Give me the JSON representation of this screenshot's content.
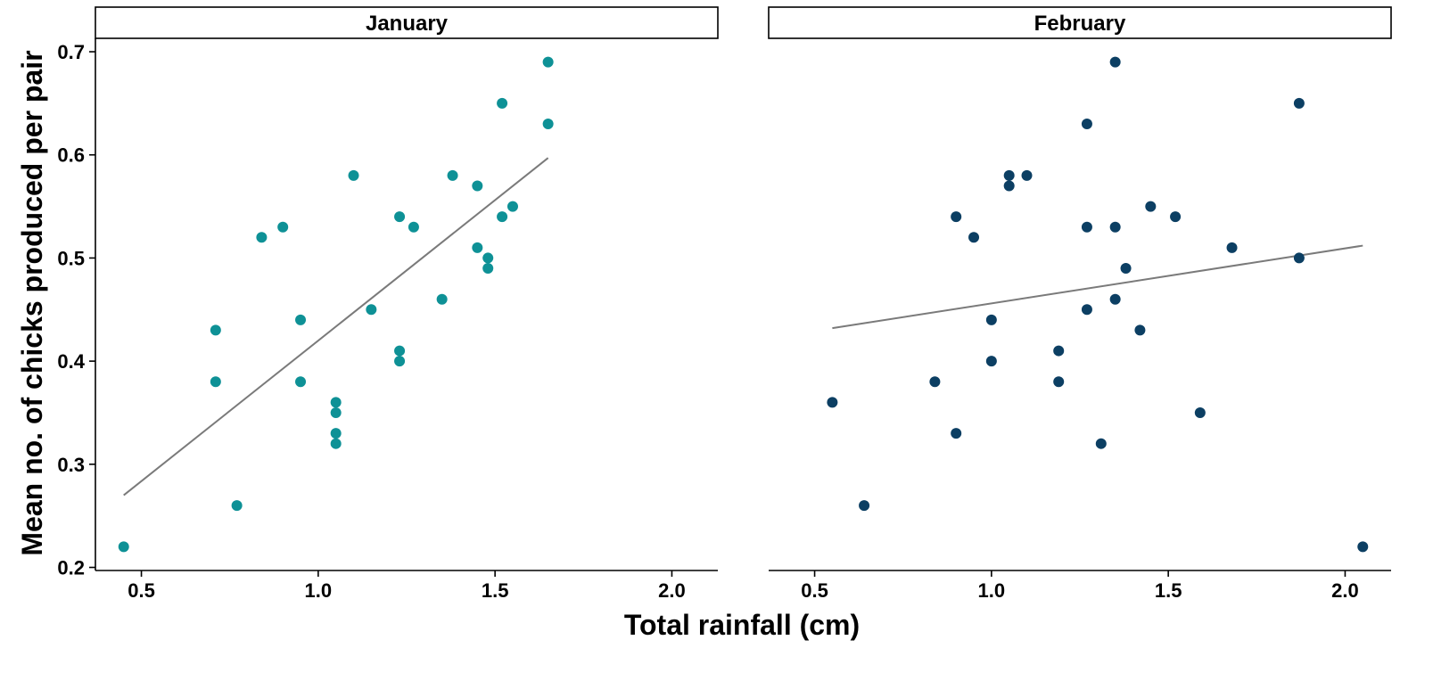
{
  "chart_data": {
    "type": "scatter",
    "xlabel": "Total rainfall (cm)",
    "ylabel": "Mean no. of chicks produced per pair",
    "xlim": [
      0.37,
      2.13
    ],
    "ylim": [
      0.197,
      0.713
    ],
    "x_ticks": [
      0.5,
      1.0,
      1.5,
      2.0
    ],
    "x_tick_labels": [
      "0.5",
      "1.0",
      "1.5",
      "2.0"
    ],
    "y_ticks": [
      0.2,
      0.3,
      0.4,
      0.5,
      0.6,
      0.7
    ],
    "y_tick_labels": [
      "0.2",
      "0.3",
      "0.4",
      "0.5",
      "0.6",
      "0.7"
    ],
    "grid": false,
    "panels": [
      {
        "facet": "January",
        "color": "#0e9196",
        "line_color": "#7a7a7a",
        "trend": {
          "x": [
            0.45,
            1.65
          ],
          "y": [
            0.27,
            0.597
          ]
        },
        "points": [
          {
            "x": 0.45,
            "y": 0.22
          },
          {
            "x": 0.71,
            "y": 0.43
          },
          {
            "x": 0.71,
            "y": 0.38
          },
          {
            "x": 0.77,
            "y": 0.26
          },
          {
            "x": 0.84,
            "y": 0.52
          },
          {
            "x": 0.9,
            "y": 0.53
          },
          {
            "x": 0.95,
            "y": 0.44
          },
          {
            "x": 0.95,
            "y": 0.38
          },
          {
            "x": 1.05,
            "y": 0.36
          },
          {
            "x": 1.05,
            "y": 0.35
          },
          {
            "x": 1.05,
            "y": 0.33
          },
          {
            "x": 1.05,
            "y": 0.32
          },
          {
            "x": 1.1,
            "y": 0.58
          },
          {
            "x": 1.15,
            "y": 0.45
          },
          {
            "x": 1.23,
            "y": 0.54
          },
          {
            "x": 1.23,
            "y": 0.41
          },
          {
            "x": 1.23,
            "y": 0.4
          },
          {
            "x": 1.27,
            "y": 0.53
          },
          {
            "x": 1.35,
            "y": 0.46
          },
          {
            "x": 1.38,
            "y": 0.58
          },
          {
            "x": 1.45,
            "y": 0.57
          },
          {
            "x": 1.45,
            "y": 0.51
          },
          {
            "x": 1.48,
            "y": 0.5
          },
          {
            "x": 1.48,
            "y": 0.49
          },
          {
            "x": 1.52,
            "y": 0.65
          },
          {
            "x": 1.52,
            "y": 0.54
          },
          {
            "x": 1.55,
            "y": 0.55
          },
          {
            "x": 1.65,
            "y": 0.69
          },
          {
            "x": 1.65,
            "y": 0.63
          }
        ]
      },
      {
        "facet": "February",
        "color": "#0c3f63",
        "line_color": "#7a7a7a",
        "trend": {
          "x": [
            0.55,
            2.05
          ],
          "y": [
            0.432,
            0.512
          ]
        },
        "points": [
          {
            "x": 0.55,
            "y": 0.36
          },
          {
            "x": 0.64,
            "y": 0.26
          },
          {
            "x": 0.84,
            "y": 0.38
          },
          {
            "x": 0.9,
            "y": 0.54
          },
          {
            "x": 0.9,
            "y": 0.33
          },
          {
            "x": 0.95,
            "y": 0.52
          },
          {
            "x": 1.0,
            "y": 0.44
          },
          {
            "x": 1.0,
            "y": 0.4
          },
          {
            "x": 1.05,
            "y": 0.58
          },
          {
            "x": 1.05,
            "y": 0.57
          },
          {
            "x": 1.1,
            "y": 0.58
          },
          {
            "x": 1.19,
            "y": 0.41
          },
          {
            "x": 1.19,
            "y": 0.38
          },
          {
            "x": 1.27,
            "y": 0.63
          },
          {
            "x": 1.27,
            "y": 0.53
          },
          {
            "x": 1.27,
            "y": 0.45
          },
          {
            "x": 1.31,
            "y": 0.32
          },
          {
            "x": 1.35,
            "y": 0.69
          },
          {
            "x": 1.35,
            "y": 0.53
          },
          {
            "x": 1.35,
            "y": 0.46
          },
          {
            "x": 1.38,
            "y": 0.49
          },
          {
            "x": 1.42,
            "y": 0.43
          },
          {
            "x": 1.45,
            "y": 0.55
          },
          {
            "x": 1.52,
            "y": 0.54
          },
          {
            "x": 1.59,
            "y": 0.35
          },
          {
            "x": 1.68,
            "y": 0.51
          },
          {
            "x": 1.87,
            "y": 0.65
          },
          {
            "x": 1.87,
            "y": 0.5
          },
          {
            "x": 2.05,
            "y": 0.22
          }
        ]
      }
    ]
  }
}
